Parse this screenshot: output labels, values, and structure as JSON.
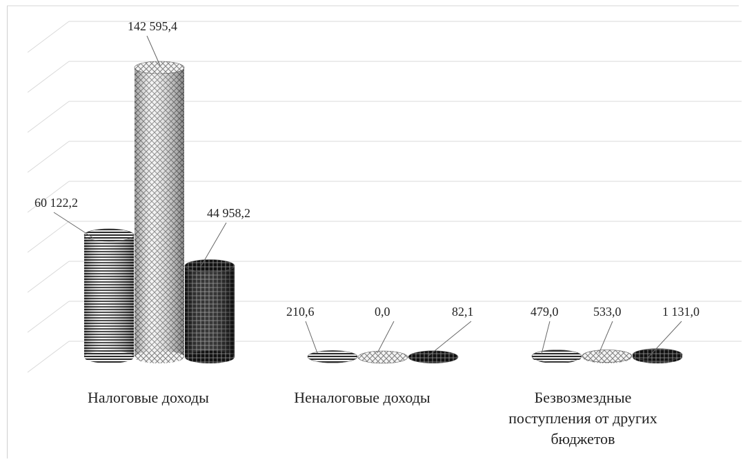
{
  "chart_data": {
    "type": "bar",
    "style": "3d-cylinder",
    "categories": [
      "Налоговые доходы",
      "Неналоговые доходы",
      "Безвозмездные поступления от других бюджетов"
    ],
    "category_label_lines": [
      [
        "Налоговые доходы"
      ],
      [
        "Неналоговые доходы"
      ],
      [
        "Безвозмездные",
        "поступления  от других",
        "бюджетов"
      ]
    ],
    "series": [
      {
        "values": [
          60122.2,
          210.6,
          479.0
        ],
        "labels": [
          "60 122,2",
          "210,6",
          "479,0"
        ],
        "pattern": "stripes"
      },
      {
        "values": [
          142595.4,
          0.0,
          533.0
        ],
        "labels": [
          "142 595,4",
          "0,0",
          "533,0"
        ],
        "pattern": "crosshatch"
      },
      {
        "values": [
          44958.2,
          82.1,
          1131.0
        ],
        "labels": [
          "44 958,2",
          "82,1",
          "1 131,0"
        ],
        "pattern": "dark-plaid"
      }
    ],
    "ylim": [
      0,
      160000
    ],
    "grid": true,
    "legend": "none",
    "colors": {
      "grid": "#d9d9d9",
      "stripes": "#333333",
      "crosshatch": "#8a8a8a",
      "dark": "#0a0a0a"
    }
  }
}
